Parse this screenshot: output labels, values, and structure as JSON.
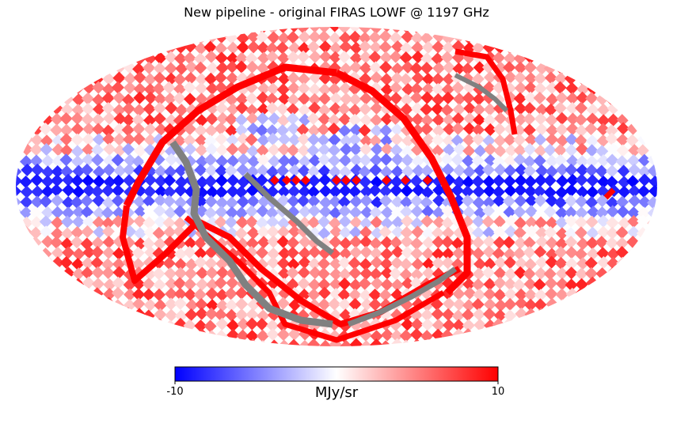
{
  "chart_data": {
    "type": "heatmap",
    "projection": "mollweide",
    "title": "New pipeline - original FIRAS LOWF @ 1197 GHz",
    "colormap": "bwr",
    "colorbar": {
      "label": "MJy/sr",
      "min": -10,
      "max": 10,
      "ticks": [
        -10,
        10
      ],
      "tick_labels": [
        "-10",
        "10"
      ],
      "colors": [
        "#0000ff",
        "#ffffff",
        "#ff0000"
      ]
    },
    "masked_color": "#808080",
    "features": [
      {
        "name": "galactic-plane",
        "description": "band of strongly negative values (≈ -10) along the equator"
      },
      {
        "name": "high-latitude",
        "description": "mostly positive values (≈ +3 to +10) toward the poles"
      },
      {
        "name": "scan-stripes",
        "description": "saturated +10 ridges and masked grey pixels along ecliptic scan paths"
      }
    ]
  }
}
